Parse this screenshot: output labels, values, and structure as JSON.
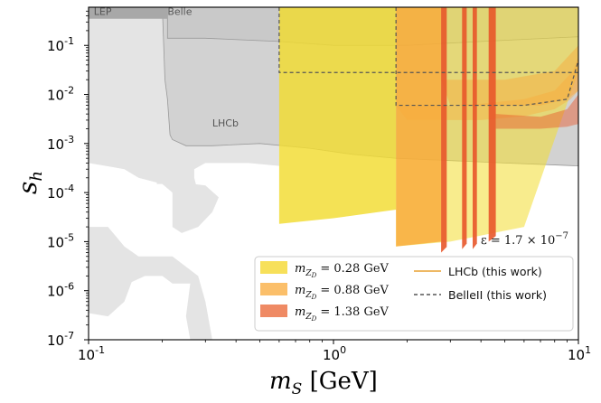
{
  "chart_data": {
    "type": "area",
    "xlabel": "m_S [GeV]",
    "ylabel": "s_h",
    "xscale": "log",
    "yscale": "log",
    "xlim": [
      0.1,
      10
    ],
    "ylim": [
      1e-07,
      0.6
    ],
    "x_ticks": [
      {
        "value": 0.1,
        "base": "10",
        "exp": "-1"
      },
      {
        "value": 1,
        "base": "10",
        "exp": "0"
      },
      {
        "value": 10,
        "base": "10",
        "exp": "1"
      }
    ],
    "y_ticks": [
      {
        "value": 1e-07,
        "base": "10",
        "exp": "-7"
      },
      {
        "value": 1e-06,
        "base": "10",
        "exp": "-6"
      },
      {
        "value": 1e-05,
        "base": "10",
        "exp": "-5"
      },
      {
        "value": 0.0001,
        "base": "10",
        "exp": "-4"
      },
      {
        "value": 0.001,
        "base": "10",
        "exp": "-3"
      },
      {
        "value": 0.01,
        "base": "10",
        "exp": "-2"
      },
      {
        "value": 0.1,
        "base": "10",
        "exp": "-1"
      }
    ],
    "background_regions": [
      {
        "label": "LEP",
        "color": "#a8a8a8",
        "label_pos": [
          0.105,
          0.42
        ]
      },
      {
        "label": "Belle",
        "color": "#cfcfcf",
        "label_pos": [
          0.21,
          0.42
        ]
      },
      {
        "label": "LHCb",
        "color": "#bdbdbd",
        "label_pos": [
          0.32,
          0.0022
        ]
      }
    ],
    "series": [
      {
        "name": "m_{Z_D} = 0.28 GeV",
        "color": "#f2dc2f",
        "regions": [
          {
            "x": [
              0.6,
              0.6,
              10
            ],
            "lower": [
              2.3e-05,
              2.3e-05,
              0.03
            ]
          },
          {
            "x": [
              1.8,
              10
            ],
            "lower": [
              8e-06,
              0.04
            ]
          }
        ]
      },
      {
        "name": "m_{Z_D} = 0.88 GeV",
        "color": "#f9a93a",
        "regions": [
          {
            "x": [
              1.8,
              10
            ],
            "lower": [
              8e-06,
              0.011
            ]
          }
        ]
      },
      {
        "name": "m_{Z_D} = 1.38 GeV",
        "color": "#e8562a",
        "regions": [
          {
            "x": [
              2.75,
              2.9
            ],
            "lower": [
              6e-06,
              7e-06
            ]
          },
          {
            "x": [
              3.35,
              3.5
            ],
            "lower": [
              7e-06,
              8e-06
            ]
          },
          {
            "x": [
              3.7,
              3.85
            ],
            "lower": [
              7e-06,
              8e-06
            ]
          },
          {
            "x": [
              4.3,
              4.6
            ],
            "lower": [
              1e-05,
              1.2e-05
            ]
          }
        ]
      }
    ],
    "lines": [
      {
        "name": "LHCb (this work)",
        "style": "solid",
        "color": "#e8a030"
      },
      {
        "name": "BelleII (this work)",
        "style": "dashed",
        "color": "#555555"
      }
    ],
    "annotation": {
      "text": "ε = 1.7 × 10",
      "exp": "−7"
    },
    "legend_position": "lower-right"
  },
  "legend": {
    "items": [
      {
        "label_var": "m",
        "label_sub": "Z",
        "label_subsub": "D",
        "label_rest": " = 0.28 GeV",
        "color": "#f7e05a"
      },
      {
        "label_var": "m",
        "label_sub": "Z",
        "label_subsub": "D",
        "label_rest": " = 0.88 GeV",
        "color": "#fbbf6a"
      },
      {
        "label_var": "m",
        "label_sub": "Z",
        "label_subsub": "D",
        "label_rest": " = 1.38 GeV",
        "color": "#ef8a64"
      }
    ],
    "line_items": [
      {
        "label": "LHCb (this work)"
      },
      {
        "label": "BelleII (this work)"
      }
    ]
  }
}
